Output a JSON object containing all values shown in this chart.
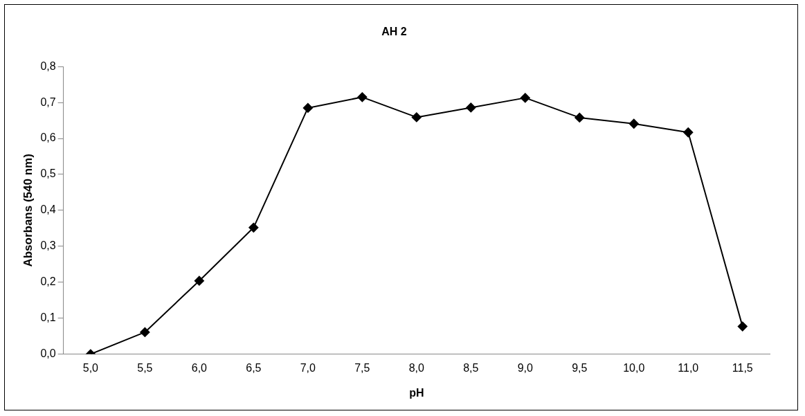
{
  "chart_data": {
    "type": "line",
    "title": "AH 2",
    "xlabel": "pH",
    "ylabel": "Absorbans (540 nm)",
    "categories": [
      "5,0",
      "5,5",
      "6,0",
      "6,5",
      "7,0",
      "7,5",
      "8,0",
      "8,5",
      "9,0",
      "9,5",
      "10,0",
      "11,0",
      "11,5"
    ],
    "series": [
      {
        "color": "#000000",
        "values": [
          0.0,
          0.061,
          0.204,
          0.352,
          0.685,
          0.715,
          0.659,
          0.686,
          0.713,
          0.658,
          0.641,
          0.617,
          0.077
        ]
      }
    ],
    "ylim": [
      0,
      0.8
    ],
    "yticks": [
      {
        "value": 0,
        "label": "0,0"
      },
      {
        "value": 0.1,
        "label": "0,1"
      },
      {
        "value": 0.2,
        "label": "0,2"
      },
      {
        "value": 0.3,
        "label": "0,3"
      },
      {
        "value": 0.4,
        "label": "0,4"
      },
      {
        "value": 0.5,
        "label": "0,5"
      },
      {
        "value": 0.6,
        "label": "0,6"
      },
      {
        "value": 0.7,
        "label": "0,7"
      },
      {
        "value": 0.8,
        "label": "0,8"
      }
    ],
    "grid": false,
    "legend": false,
    "marker": "diamond",
    "line_style": "solid"
  }
}
